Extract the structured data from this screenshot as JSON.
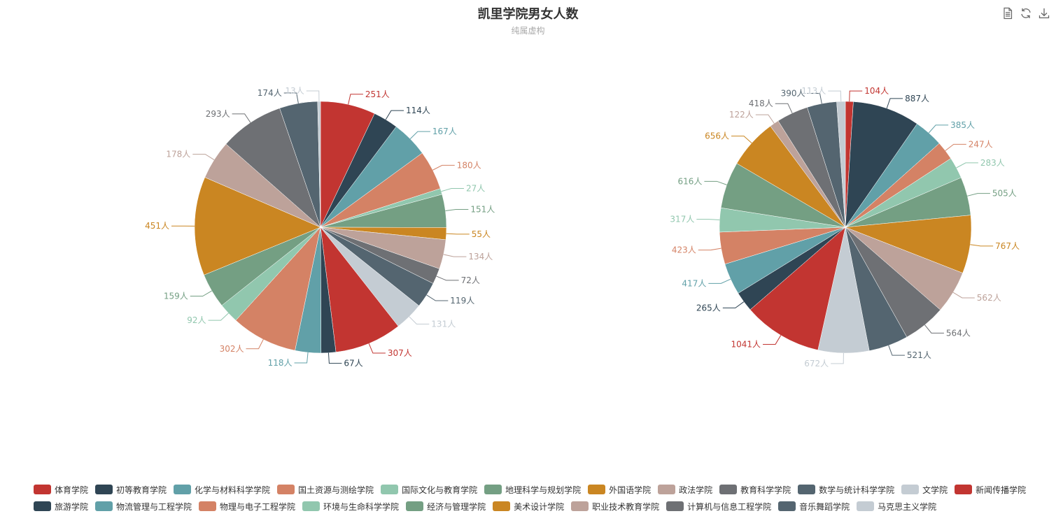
{
  "header": {
    "title": "凯里学院男女人数",
    "subtitle": "纯属虚构"
  },
  "toolbox": {
    "items": [
      "data-view-icon",
      "restore-icon",
      "save-image-icon"
    ]
  },
  "palette": [
    "#c23531",
    "#2f4554",
    "#61a0a8",
    "#d48265",
    "#91c7ae",
    "#749f83",
    "#ca8622",
    "#bda29a",
    "#6e7074",
    "#546570",
    "#c4ccd3"
  ],
  "chart_data": [
    {
      "type": "pie",
      "unit": "人",
      "categories": [
        "体育学院",
        "初等教育学院",
        "化学与材料科学学院",
        "国土资源与测绘学院",
        "国际文化与教育学院",
        "地理科学与规划学院",
        "外国语学院",
        "政法学院",
        "教育科学学院",
        "数学与统计科学学院",
        "文学院",
        "新闻传播学院",
        "旅游学院",
        "物流管理与工程学院",
        "物理与电子工程学院",
        "环境与生命科学学院",
        "经济与管理学院",
        "美术设计学院",
        "职业技术教育学院",
        "计算机与信息工程学院",
        "音乐舞蹈学院",
        "马克思主义学院"
      ],
      "values": [
        251,
        114,
        167,
        180,
        27,
        151,
        55,
        134,
        72,
        119,
        131,
        307,
        67,
        118,
        302,
        92,
        159,
        451,
        178,
        293,
        174,
        13
      ]
    },
    {
      "type": "pie",
      "unit": "人",
      "categories": [
        "体育学院",
        "初等教育学院",
        "化学与材料科学学院",
        "国土资源与测绘学院",
        "国际文化与教育学院",
        "地理科学与规划学院",
        "外国语学院",
        "政法学院",
        "教育科学学院",
        "数学与统计科学学院",
        "文学院",
        "新闻传播学院",
        "旅游学院",
        "物流管理与工程学院",
        "物理与电子工程学院",
        "环境与生命科学学院",
        "经济与管理学院",
        "美术设计学院",
        "职业技术教育学院",
        "计算机与信息工程学院",
        "音乐舞蹈学院",
        "马克思主义学院"
      ],
      "values": [
        104,
        887,
        385,
        247,
        283,
        505,
        767,
        562,
        564,
        521,
        672,
        1041,
        265,
        417,
        423,
        317,
        616,
        656,
        122,
        418,
        390,
        113
      ]
    }
  ],
  "legend": {
    "rows": [
      [
        "体育学院",
        "初等教育学院",
        "化学与材料科学学院",
        "国土资源与测绘学院",
        "国际文化与教育学院",
        "地理科学与规划学院",
        "外国语学院",
        "政法学院",
        "教育科学学院",
        "数学与统计科学学院",
        "文学院",
        "新闻传播学院"
      ],
      [
        "旅游学院",
        "物流管理与工程学院",
        "物理与电子工程学院",
        "环境与生命科学学院",
        "经济与管理学院",
        "美术设计学院",
        "职业技术教育学院",
        "计算机与信息工程学院",
        "音乐舞蹈学院",
        "马克思主义学院"
      ]
    ]
  }
}
